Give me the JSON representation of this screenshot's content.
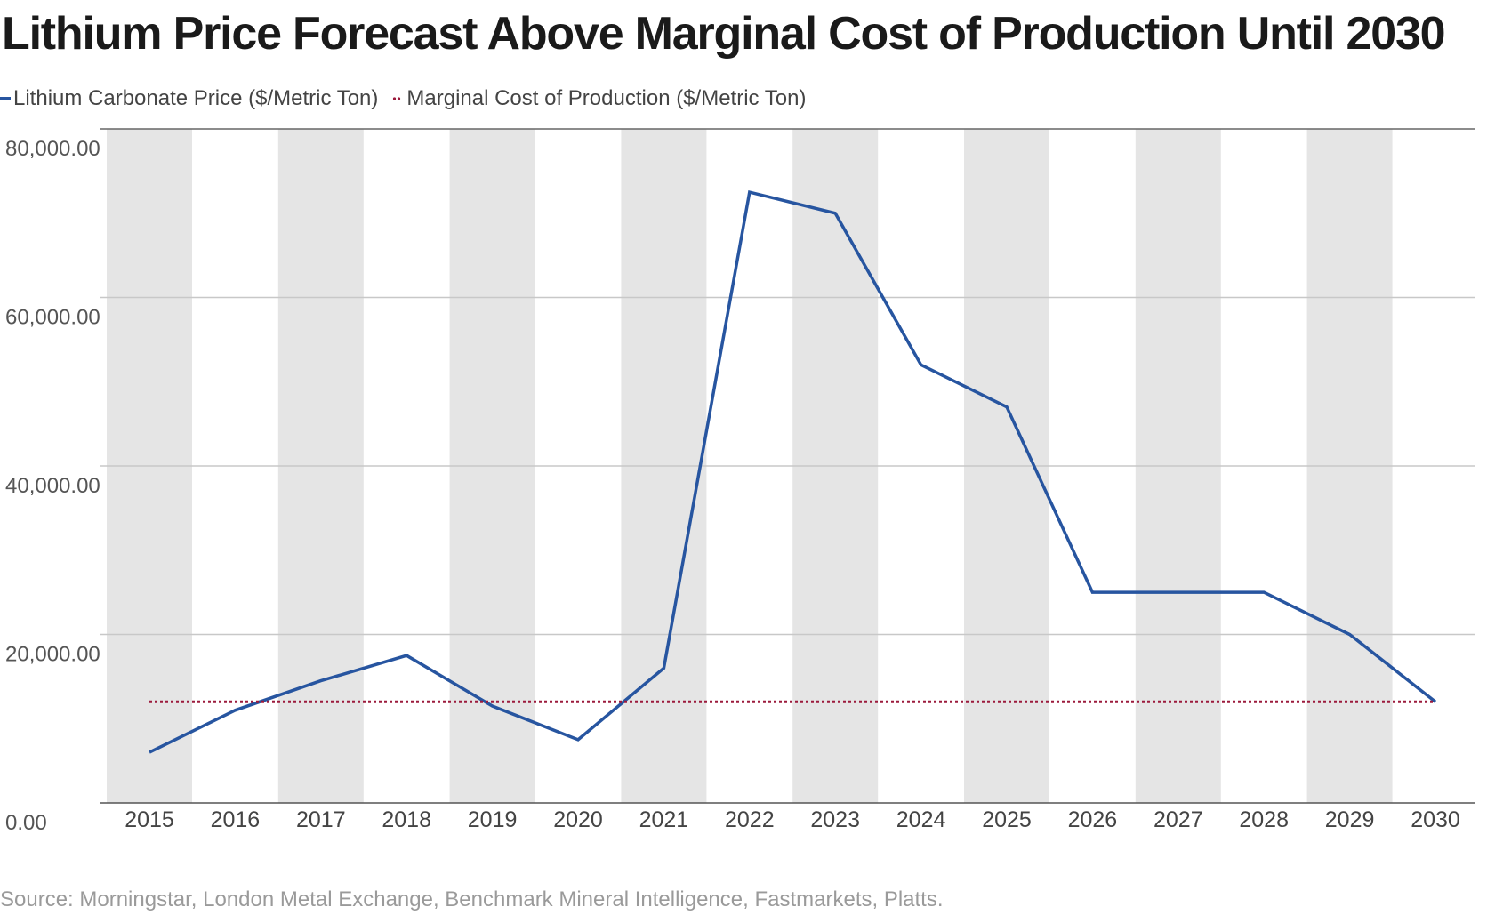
{
  "chart_data": {
    "type": "line",
    "title": "Lithium Price Forecast Above Marginal Cost of Production Until 2030",
    "source": "Source: Morningstar, London Metal Exchange, Benchmark Mineral Intelligence, Fastmarkets, Platts.",
    "x": [
      2015,
      2016,
      2017,
      2018,
      2019,
      2020,
      2021,
      2022,
      2023,
      2024,
      2025,
      2026,
      2027,
      2028,
      2029,
      2030
    ],
    "x_tick_labels": [
      "2015",
      "2016",
      "2017",
      "2018",
      "2019",
      "2020",
      "2021",
      "2022",
      "2023",
      "2024",
      "2025",
      "2026",
      "2027",
      "2028",
      "2029",
      "2030"
    ],
    "y_tick_labels": [
      "80,000.00",
      "60,000.00",
      "40,000.00",
      "20,000.00",
      "0.00"
    ],
    "y_ticks": [
      80000,
      60000,
      40000,
      20000,
      0
    ],
    "ylim": [
      0,
      80000
    ],
    "xlabel": "",
    "ylabel": "",
    "grid": "horizontal",
    "alternating_column_shading": true,
    "legend_position": "top-left",
    "series": [
      {
        "name": "Lithium Carbonate Price ($/Metric Ton)",
        "style": "solid",
        "color": "#2755a0",
        "values": [
          6000,
          11000,
          14500,
          17500,
          11500,
          7500,
          16000,
          72500,
          70000,
          52000,
          47000,
          25000,
          25000,
          25000,
          20000,
          12000
        ]
      },
      {
        "name": "Marginal Cost of Production ($/Metric Ton)",
        "style": "dotted",
        "color": "#9b1a3c",
        "values": [
          12000,
          12000,
          12000,
          12000,
          12000,
          12000,
          12000,
          12000,
          12000,
          12000,
          12000,
          12000,
          12000,
          12000,
          12000,
          12000
        ]
      }
    ]
  }
}
